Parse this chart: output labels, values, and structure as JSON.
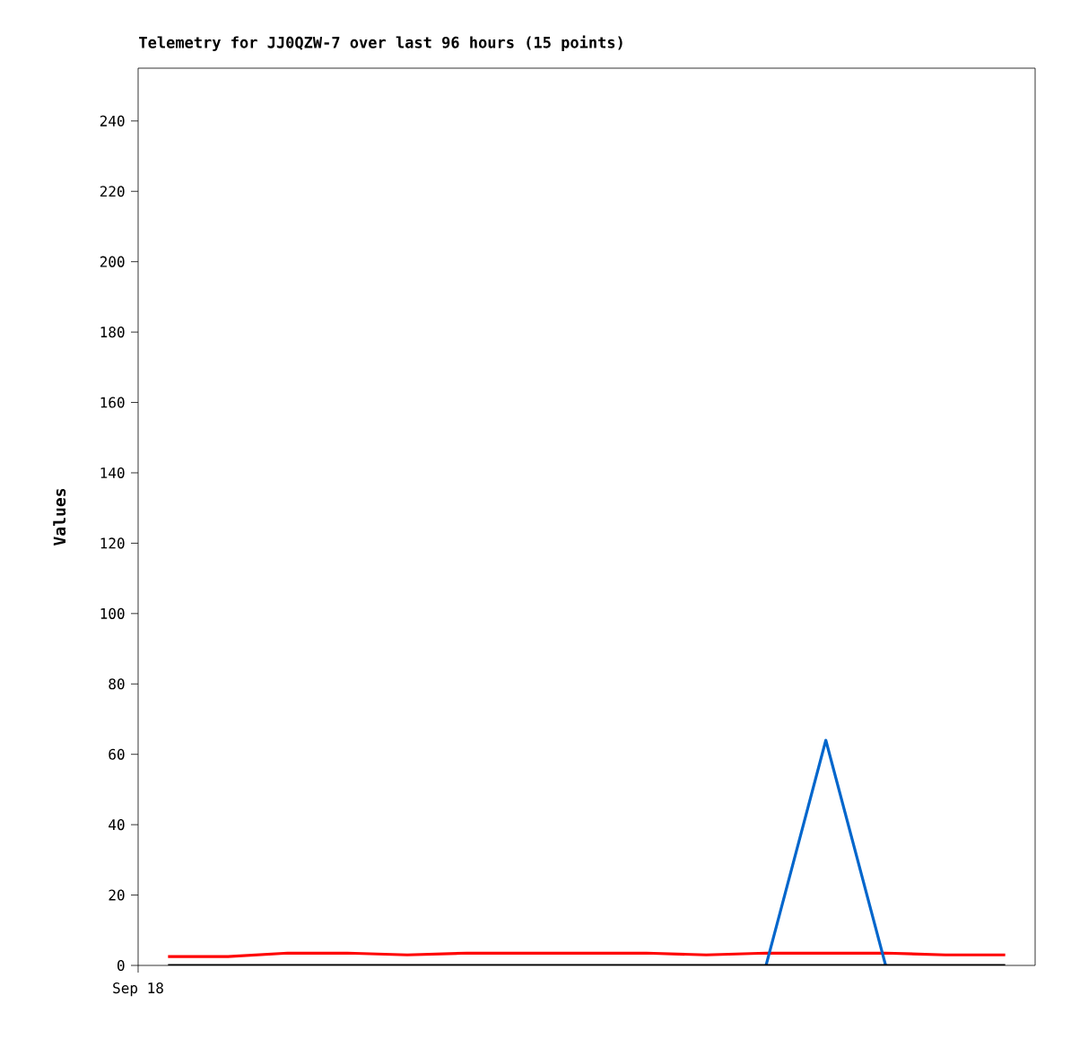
{
  "chart_data": {
    "type": "line",
    "title": "Telemetry for JJ0QZW-7 over last 96 hours (15 points)",
    "ylabel": "Values",
    "categories": [
      null,
      null,
      null,
      null,
      null,
      null,
      null,
      null,
      null,
      null,
      null,
      null,
      null,
      null,
      null
    ],
    "series": [
      {
        "color": "#ff0000",
        "values": [
          2.5,
          2.5,
          3.5,
          3.5,
          3,
          3.5,
          3.5,
          3.5,
          3.5,
          3,
          3.5,
          3.5,
          3.5,
          3,
          3
        ]
      },
      {
        "color": "#0066cc",
        "values": [
          null,
          null,
          null,
          null,
          null,
          null,
          null,
          null,
          null,
          null,
          0,
          64,
          0,
          null,
          null
        ]
      },
      {
        "color": "#000000",
        "values": [
          0,
          0,
          0,
          0,
          0,
          0,
          0,
          0,
          0,
          0,
          0,
          0,
          0,
          0,
          0
        ]
      }
    ],
    "annotations": [
      "Sep 18"
    ],
    "ylim": [
      0,
      255
    ],
    "yticks": [
      0,
      20,
      40,
      60,
      80,
      100,
      120,
      140,
      160,
      180,
      200,
      220,
      240
    ],
    "marker": "none",
    "line_style": "solid"
  }
}
